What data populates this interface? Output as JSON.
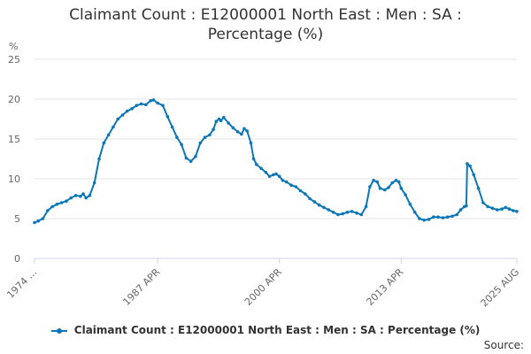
{
  "chart_data": {
    "type": "line",
    "title": "Claimant Count : E12000001 North East : Men : SA :\nPercentage (%)",
    "ylabel": "%",
    "ylim": [
      0,
      25
    ],
    "yticks": [
      0,
      5,
      10,
      15,
      20,
      25
    ],
    "xlim": [
      1974.1,
      2025.6
    ],
    "xtick_labels": [
      {
        "label": "1974 ...",
        "x": 1974.1
      },
      {
        "label": "1987 APR",
        "x": 1987.25
      },
      {
        "label": "2000 APR",
        "x": 2000.25
      },
      {
        "label": "2013 APR",
        "x": 2013.25
      },
      {
        "label": "2025 AUG",
        "x": 2025.6
      }
    ],
    "grid": true,
    "legend_position": "bottom",
    "series": [
      {
        "name": "Claimant Count : E12000001 North East : Men : SA : Percentage (%)",
        "color": "#0d77b6",
        "points": [
          [
            1974.1,
            4.5
          ],
          [
            1974.5,
            4.7
          ],
          [
            1975.0,
            5.0
          ],
          [
            1975.5,
            6.0
          ],
          [
            1976.0,
            6.5
          ],
          [
            1976.5,
            6.8
          ],
          [
            1977.0,
            7.0
          ],
          [
            1977.5,
            7.2
          ],
          [
            1978.0,
            7.6
          ],
          [
            1978.5,
            7.9
          ],
          [
            1979.0,
            7.8
          ],
          [
            1979.3,
            8.1
          ],
          [
            1979.6,
            7.6
          ],
          [
            1980.0,
            7.9
          ],
          [
            1980.5,
            9.5
          ],
          [
            1981.0,
            12.5
          ],
          [
            1981.5,
            14.5
          ],
          [
            1982.0,
            15.5
          ],
          [
            1982.5,
            16.5
          ],
          [
            1983.0,
            17.5
          ],
          [
            1983.5,
            18.0
          ],
          [
            1984.0,
            18.5
          ],
          [
            1984.5,
            18.8
          ],
          [
            1985.0,
            19.2
          ],
          [
            1985.5,
            19.4
          ],
          [
            1986.0,
            19.3
          ],
          [
            1986.5,
            19.8
          ],
          [
            1986.8,
            19.9
          ],
          [
            1987.25,
            19.5
          ],
          [
            1987.8,
            19.2
          ],
          [
            1988.3,
            17.8
          ],
          [
            1988.8,
            16.5
          ],
          [
            1989.3,
            15.2
          ],
          [
            1989.8,
            14.3
          ],
          [
            1990.3,
            12.6
          ],
          [
            1990.8,
            12.2
          ],
          [
            1991.3,
            12.8
          ],
          [
            1991.8,
            14.5
          ],
          [
            1992.3,
            15.2
          ],
          [
            1992.8,
            15.5
          ],
          [
            1993.2,
            16.2
          ],
          [
            1993.5,
            17.2
          ],
          [
            1993.8,
            17.5
          ],
          [
            1994.0,
            17.3
          ],
          [
            1994.3,
            17.7
          ],
          [
            1994.8,
            17.0
          ],
          [
            1995.3,
            16.4
          ],
          [
            1995.8,
            15.9
          ],
          [
            1996.2,
            15.6
          ],
          [
            1996.5,
            16.3
          ],
          [
            1996.8,
            16.0
          ],
          [
            1997.2,
            14.5
          ],
          [
            1997.5,
            12.5
          ],
          [
            1997.8,
            11.8
          ],
          [
            1998.3,
            11.3
          ],
          [
            1998.8,
            10.8
          ],
          [
            1999.2,
            10.3
          ],
          [
            1999.6,
            10.5
          ],
          [
            1999.9,
            10.6
          ],
          [
            2000.25,
            10.3
          ],
          [
            2000.6,
            9.8
          ],
          [
            2001.0,
            9.6
          ],
          [
            2001.5,
            9.2
          ],
          [
            2002.0,
            9.0
          ],
          [
            2002.5,
            8.5
          ],
          [
            2003.0,
            8.1
          ],
          [
            2003.5,
            7.5
          ],
          [
            2004.0,
            7.1
          ],
          [
            2004.5,
            6.7
          ],
          [
            2005.0,
            6.4
          ],
          [
            2005.5,
            6.1
          ],
          [
            2006.0,
            5.8
          ],
          [
            2006.5,
            5.5
          ],
          [
            2007.0,
            5.6
          ],
          [
            2007.5,
            5.8
          ],
          [
            2008.0,
            5.9
          ],
          [
            2008.5,
            5.7
          ],
          [
            2009.0,
            5.5
          ],
          [
            2009.5,
            6.5
          ],
          [
            2009.9,
            9.0
          ],
          [
            2010.3,
            9.8
          ],
          [
            2010.7,
            9.6
          ],
          [
            2011.0,
            8.8
          ],
          [
            2011.5,
            8.6
          ],
          [
            2011.9,
            8.9
          ],
          [
            2012.3,
            9.5
          ],
          [
            2012.7,
            9.8
          ],
          [
            2013.0,
            9.6
          ],
          [
            2013.25,
            8.8
          ],
          [
            2013.7,
            8.0
          ],
          [
            2014.2,
            6.8
          ],
          [
            2014.7,
            5.8
          ],
          [
            2015.2,
            5.0
          ],
          [
            2015.7,
            4.8
          ],
          [
            2016.2,
            4.9
          ],
          [
            2016.7,
            5.2
          ],
          [
            2017.2,
            5.2
          ],
          [
            2017.7,
            5.1
          ],
          [
            2018.2,
            5.2
          ],
          [
            2018.7,
            5.3
          ],
          [
            2019.2,
            5.5
          ],
          [
            2019.6,
            6.1
          ],
          [
            2020.0,
            6.5
          ],
          [
            2020.2,
            6.6
          ],
          [
            2020.3,
            11.9
          ],
          [
            2020.6,
            11.6
          ],
          [
            2021.0,
            10.5
          ],
          [
            2021.5,
            8.8
          ],
          [
            2022.0,
            7.0
          ],
          [
            2022.5,
            6.5
          ],
          [
            2023.0,
            6.3
          ],
          [
            2023.5,
            6.1
          ],
          [
            2024.0,
            6.2
          ],
          [
            2024.4,
            6.4
          ],
          [
            2024.8,
            6.2
          ],
          [
            2025.2,
            6.0
          ],
          [
            2025.6,
            5.9
          ]
        ]
      }
    ]
  },
  "legend": {
    "label": "Claimant Count : E12000001 North East : Men : SA : Percentage (%)"
  },
  "footer": {
    "source_label": "Source:"
  }
}
